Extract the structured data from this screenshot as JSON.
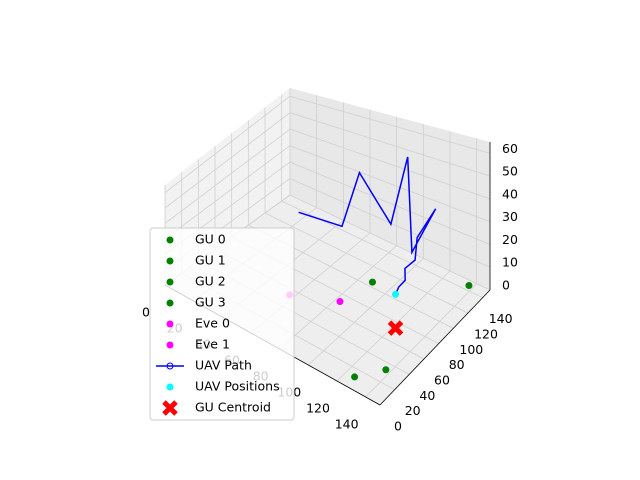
{
  "chart_data": {
    "type": "scatter3d",
    "xlim": [
      0,
      150
    ],
    "ylim": [
      0,
      150
    ],
    "zlim": [
      0,
      65
    ],
    "xticks": [
      0,
      20,
      40,
      60,
      80,
      100,
      120,
      140
    ],
    "yticks": [
      0,
      20,
      40,
      60,
      80,
      100,
      120,
      140
    ],
    "zticks": [
      0,
      10,
      20,
      30,
      40,
      50,
      60
    ],
    "grid": true,
    "series": [
      {
        "name": "GU 0",
        "kind": "point",
        "color": "green",
        "x": [
          137
        ],
        "y": [
          145
        ],
        "z": [
          0
        ]
      },
      {
        "name": "GU 1",
        "kind": "point",
        "color": "green",
        "x": [
          88
        ],
        "y": [
          105
        ],
        "z": [
          0
        ]
      },
      {
        "name": "GU 2",
        "kind": "point",
        "color": "green",
        "x": [
          126
        ],
        "y": [
          12
        ],
        "z": [
          0
        ]
      },
      {
        "name": "GU 3",
        "kind": "point",
        "color": "green",
        "x": [
          137
        ],
        "y": [
          33
        ],
        "z": [
          0
        ]
      },
      {
        "name": "Eve 0",
        "kind": "point",
        "color": "magenta",
        "x": [
          57
        ],
        "y": [
          54
        ],
        "z": [
          0
        ]
      },
      {
        "name": "Eve 1",
        "kind": "point",
        "color": "magenta",
        "x": [
          83
        ],
        "y": [
          72
        ],
        "z": [
          0
        ]
      },
      {
        "name": "UAV Path",
        "kind": "line",
        "color": "blue",
        "x": [
          52,
          76,
          83,
          97,
          106,
          108,
          120,
          118,
          122,
          119,
          123,
          121,
          122
        ],
        "y": [
          74,
          87,
          97,
          113,
          119,
          121,
          131,
          110,
          100,
          92,
          85,
          80,
          74
        ],
        "z": [
          35,
          30,
          55,
          28,
          60,
          15,
          35,
          28,
          22,
          20,
          18,
          16,
          15
        ]
      },
      {
        "name": "UAV Positions",
        "kind": "point",
        "color": "cyan",
        "x": [
          122
        ],
        "y": [
          74
        ],
        "z": [
          15
        ]
      },
      {
        "name": "GU Centroid",
        "kind": "cross",
        "color": "red",
        "x": [
          122
        ],
        "y": [
          74
        ],
        "z": [
          0
        ]
      }
    ]
  }
}
